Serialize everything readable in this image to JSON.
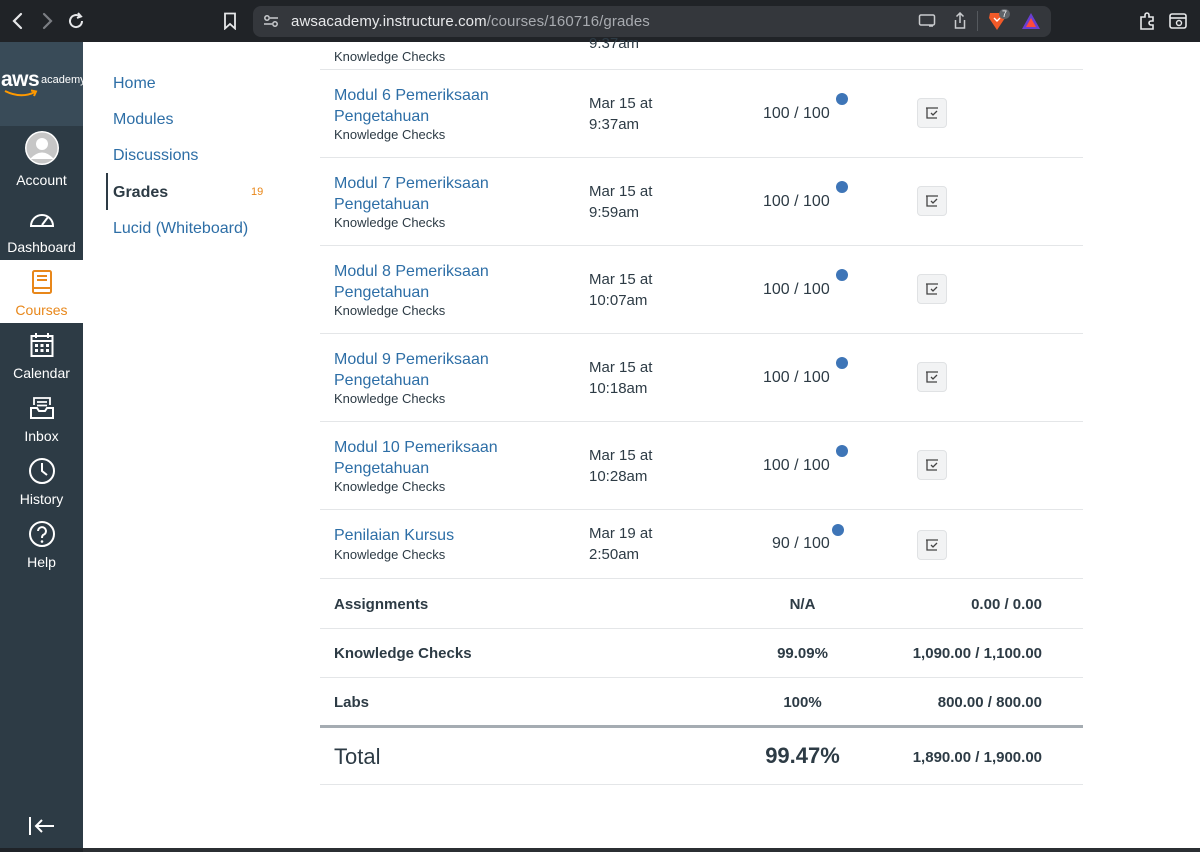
{
  "browser": {
    "url_host": "awsacademy.instructure.com",
    "url_path": "/courses/160716/grades",
    "extension_badge": "7"
  },
  "global_nav": {
    "logo_aws": "aws",
    "logo_academy": "academy",
    "items": [
      {
        "label": "Account"
      },
      {
        "label": "Dashboard"
      },
      {
        "label": "Courses"
      },
      {
        "label": "Calendar"
      },
      {
        "label": "Inbox"
      },
      {
        "label": "History"
      },
      {
        "label": "Help"
      }
    ]
  },
  "course_nav": {
    "items": [
      {
        "label": "Home"
      },
      {
        "label": "Modules"
      },
      {
        "label": "Discussions"
      },
      {
        "label": "Grades",
        "count": "19"
      },
      {
        "label": "Lucid (Whiteboard)"
      }
    ]
  },
  "assignments": {
    "partial_top": {
      "subtitle": "Knowledge Checks",
      "date_fragment": "9:37am"
    },
    "rows": [
      {
        "title": "Modul 6 Pemeriksaan Pengetahuan",
        "group": "Knowledge Checks",
        "date": "Mar 15 at 9:37am",
        "score": "100 / 100"
      },
      {
        "title": "Modul 7 Pemeriksaan Pengetahuan",
        "group": "Knowledge Checks",
        "date": "Mar 15 at 9:59am",
        "score": "100 / 100"
      },
      {
        "title": "Modul 8 Pemeriksaan Pengetahuan",
        "group": "Knowledge Checks",
        "date": "Mar 15 at 10:07am",
        "score": "100 / 100"
      },
      {
        "title": "Modul 9 Pemeriksaan Pengetahuan",
        "group": "Knowledge Checks",
        "date": "Mar 15 at 10:18am",
        "score": "100 / 100"
      },
      {
        "title": "Modul 10 Pemeriksaan Pengetahuan",
        "group": "Knowledge Checks",
        "date": "Mar 15 at 10:28am",
        "score": "100 / 100"
      },
      {
        "title": "Penilaian Kursus",
        "group": "Knowledge Checks",
        "date": "Mar 19 at 2:50am",
        "score": "90 / 100"
      }
    ]
  },
  "summary": {
    "rows": [
      {
        "label": "Assignments",
        "percent": "N/A",
        "points": "0.00 / 0.00"
      },
      {
        "label": "Knowledge Checks",
        "percent": "99.09%",
        "points": "1,090.00 / 1,100.00"
      },
      {
        "label": "Labs",
        "percent": "100%",
        "points": "800.00 / 800.00"
      }
    ],
    "total": {
      "label": "Total",
      "percent": "99.47%",
      "points": "1,890.00 / 1,900.00"
    }
  },
  "colors": {
    "nav_bg": "#2d3b45",
    "link": "#2d6ea6",
    "accent": "#e8871a",
    "dot": "#3e75b7"
  }
}
